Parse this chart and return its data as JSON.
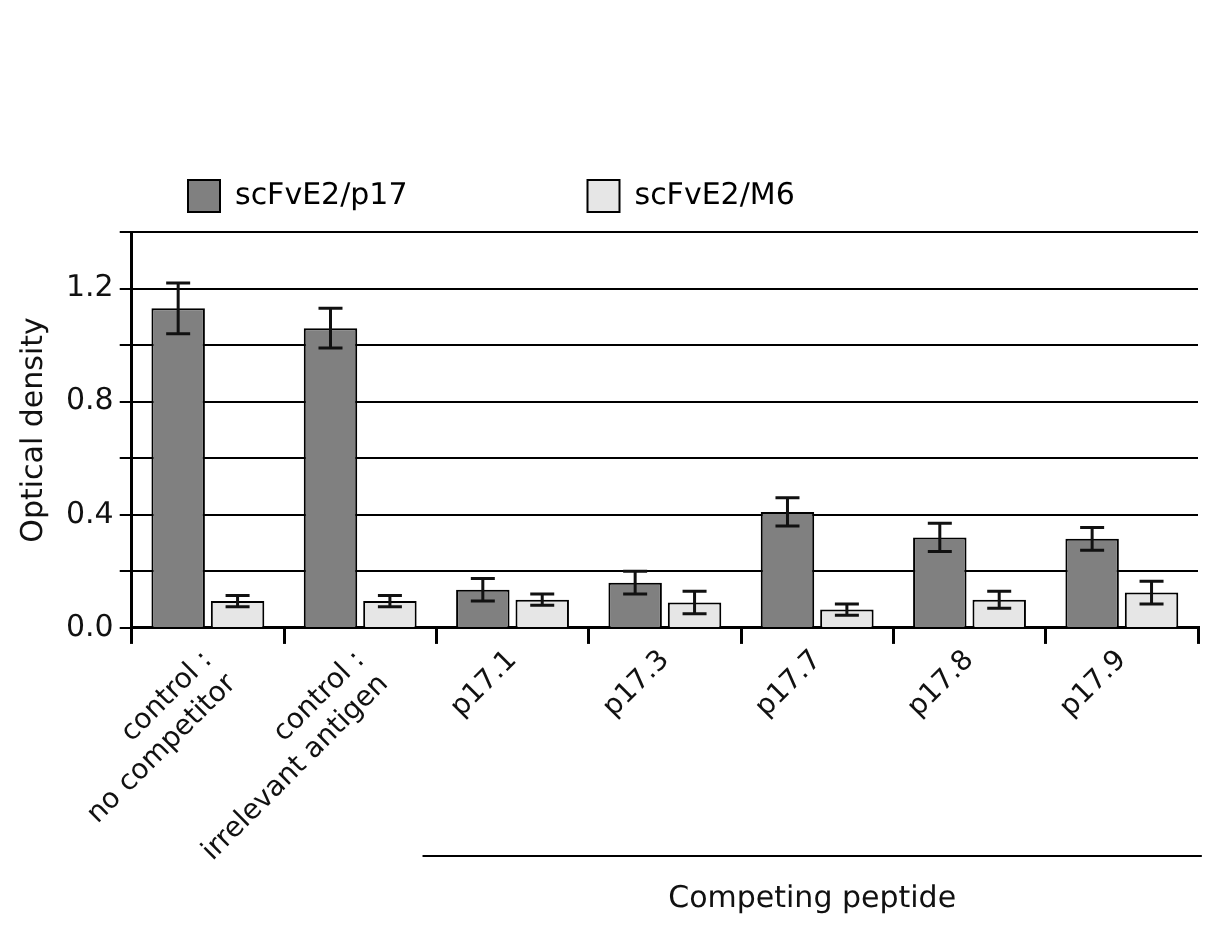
{
  "chart_data": {
    "type": "bar",
    "ylabel": "Optical density",
    "categories": [
      "control :\nno competitor",
      "control :\nirrelevant antigen",
      "p17.1",
      "p17.3",
      "p17.7",
      "p17.8",
      "p17.9"
    ],
    "series": [
      {
        "name": "scFvE2/p17",
        "color": "#808080",
        "values": [
          1.13,
          1.06,
          0.135,
          0.16,
          0.41,
          0.32,
          0.315
        ],
        "errors": [
          0.09,
          0.07,
          0.04,
          0.04,
          0.05,
          0.05,
          0.04
        ]
      },
      {
        "name": "scFvE2/M6",
        "color": "#e6e6e6",
        "values": [
          0.095,
          0.095,
          0.1,
          0.09,
          0.065,
          0.1,
          0.125
        ],
        "errors": [
          0.02,
          0.02,
          0.02,
          0.04,
          0.02,
          0.03,
          0.04
        ]
      }
    ],
    "ylim": [
      0,
      1.4
    ],
    "yticks": [
      {
        "value": 0,
        "label": "0.0"
      },
      {
        "value": 0.2,
        "label": null
      },
      {
        "value": 0.4,
        "label": "0.4"
      },
      {
        "value": 0.6,
        "label": null
      },
      {
        "value": 0.8,
        "label": "0.8"
      },
      {
        "value": 1.0,
        "label": null
      },
      {
        "value": 1.2,
        "label": "1.2"
      },
      {
        "value": 1.4,
        "label": null
      }
    ],
    "grid": "y",
    "legend": "top",
    "annotations": [
      "Competing peptide"
    ]
  }
}
